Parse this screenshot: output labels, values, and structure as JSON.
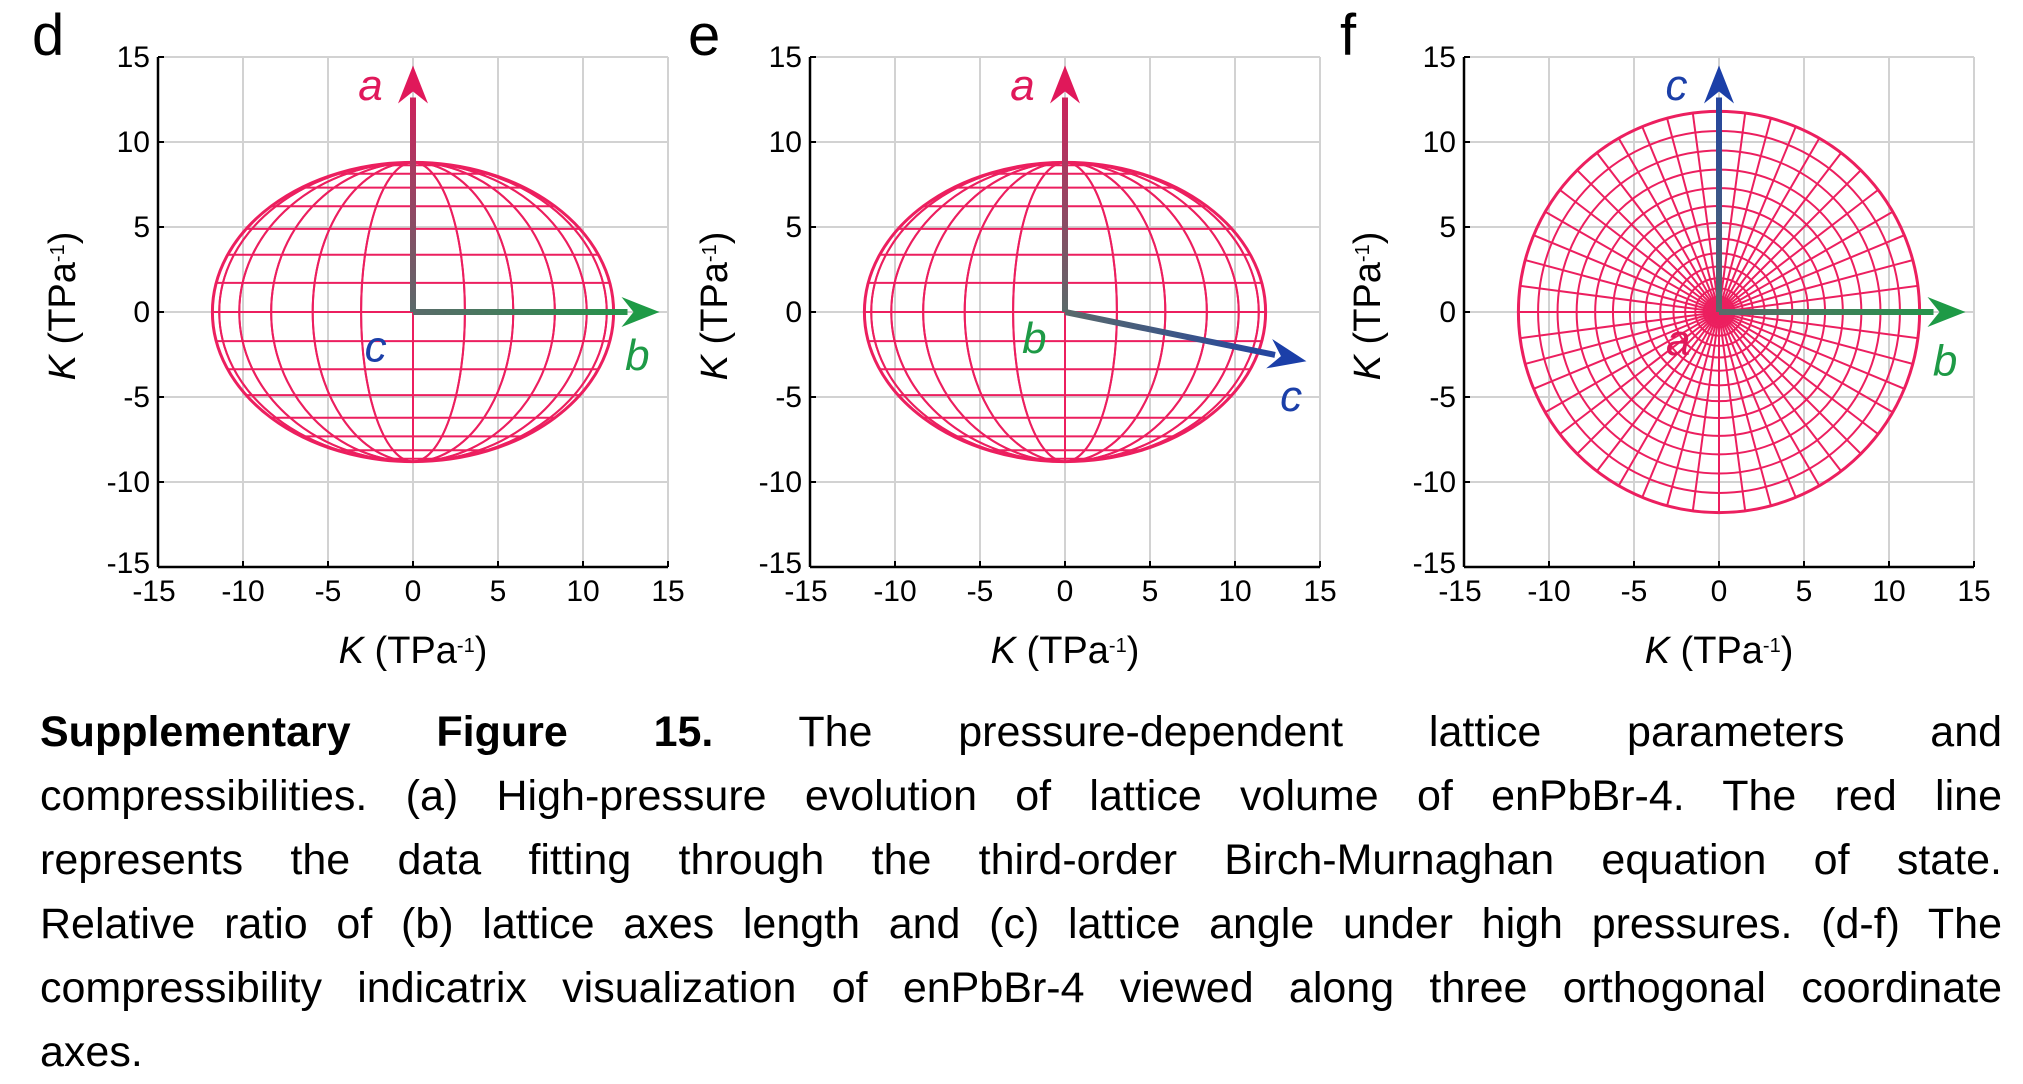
{
  "chart_data": [
    {
      "type": "indicatrix",
      "panel_label": "d",
      "xlabel": "K",
      "xlabel_unit": " (TPa",
      "xlabel_sup": "-1",
      "xlabel_close": ")",
      "ylabel": "K",
      "ylabel_unit": " (TPa",
      "ylabel_sup": "-1",
      "ylabel_close": ")",
      "xlim": [
        -15,
        15
      ],
      "ylim": [
        -15,
        15
      ],
      "xticks": [
        "-15",
        "-10",
        "-5",
        "0",
        "5",
        "10",
        "15"
      ],
      "yticks": [
        "15",
        "10",
        "5",
        "0",
        "-5",
        "-10",
        "-15"
      ],
      "grid": true,
      "indicatrix_radii": {
        "horizontal": 11.8,
        "vertical": 8.8
      },
      "vectors": [
        {
          "label": "a",
          "color": "#e0185a",
          "from": [
            0,
            0
          ],
          "to": [
            0,
            14.5
          ]
        },
        {
          "label": "b",
          "color": "#1e9a46",
          "from": [
            0,
            0
          ],
          "to": [
            14.5,
            0
          ]
        }
      ],
      "point_labels": [
        {
          "label": "c",
          "color": "#1b3fa8",
          "at": [
            -2.2,
            -2.1
          ]
        },
        {
          "label": "b",
          "color": "#1e9a46",
          "at": [
            13.2,
            -2.6
          ]
        },
        {
          "label": "a",
          "color": "#e0185a",
          "at": [
            -2.5,
            13.3
          ]
        }
      ]
    },
    {
      "type": "indicatrix",
      "panel_label": "e",
      "xlabel": "K",
      "xlabel_unit": " (TPa",
      "xlabel_sup": "-1",
      "xlabel_close": ")",
      "ylabel": "K",
      "ylabel_unit": " (TPa",
      "ylabel_sup": "-1",
      "ylabel_close": ")",
      "xlim": [
        -15,
        15
      ],
      "ylim": [
        -15,
        15
      ],
      "xticks": [
        "-15",
        "-10",
        "-5",
        "0",
        "5",
        "10",
        "15"
      ],
      "yticks": [
        "15",
        "10",
        "5",
        "0",
        "-5",
        "-10",
        "-15"
      ],
      "grid": true,
      "indicatrix_radii": {
        "horizontal": 11.8,
        "vertical": 8.8
      },
      "vectors": [
        {
          "label": "a",
          "color": "#e0185a",
          "from": [
            0,
            0
          ],
          "to": [
            0,
            14.5
          ]
        },
        {
          "label": "c",
          "color": "#1b3fa8",
          "from": [
            0,
            0
          ],
          "to": [
            14.2,
            -2.9
          ]
        }
      ],
      "point_labels": [
        {
          "label": "b",
          "color": "#1e9a46",
          "at": [
            -1.8,
            -1.6
          ]
        },
        {
          "label": "c",
          "color": "#1b3fa8",
          "at": [
            13.3,
            -5.0
          ]
        },
        {
          "label": "a",
          "color": "#e0185a",
          "at": [
            -2.5,
            13.3
          ]
        }
      ]
    },
    {
      "type": "indicatrix",
      "panel_label": "f",
      "xlabel": "K",
      "xlabel_unit": " (TPa",
      "xlabel_sup": "-1",
      "xlabel_close": ")",
      "ylabel": "K",
      "ylabel_unit": " (TPa",
      "ylabel_sup": "-1",
      "ylabel_close": ")",
      "xlim": [
        -15,
        15
      ],
      "ylim": [
        -15,
        15
      ],
      "xticks": [
        "-15",
        "-10",
        "-5",
        "0",
        "5",
        "10",
        "15"
      ],
      "yticks": [
        "15",
        "10",
        "5",
        "0",
        "-5",
        "-10",
        "-15"
      ],
      "grid": true,
      "indicatrix_radii": {
        "horizontal": 11.8,
        "vertical": 11.8
      },
      "vectors": [
        {
          "label": "c",
          "color": "#1b3fa8",
          "from": [
            0,
            0
          ],
          "to": [
            0,
            14.5
          ]
        },
        {
          "label": "b",
          "color": "#1e9a46",
          "from": [
            0,
            0
          ],
          "to": [
            14.5,
            0
          ]
        }
      ],
      "point_labels": [
        {
          "label": "a",
          "color": "#e0185a",
          "at": [
            -2.4,
            -1.7
          ]
        },
        {
          "label": "b",
          "color": "#1e9a46",
          "at": [
            13.3,
            -2.9
          ]
        },
        {
          "label": "c",
          "color": "#1b3fa8",
          "at": [
            -2.5,
            13.3
          ]
        }
      ]
    }
  ],
  "caption": {
    "bold": "Supplementary Figure 15.",
    "line1_words": [
      "The",
      "pressure-dependent",
      "lattice",
      "parameters",
      "and"
    ],
    "lines": [
      "compressibilities. (a) High-pressure evolution of lattice volume of enPbBr-4. The red line",
      "represents the data fitting through the third-order Birch-Murnaghan equation of state.",
      "Relative ratio of (b) lattice axes length and (c) lattice angle under high pressures. (d-f) The",
      "compressibility indicatrix visualization of enPbBr-4 viewed along three orthogonal coordinate",
      "axes."
    ]
  }
}
